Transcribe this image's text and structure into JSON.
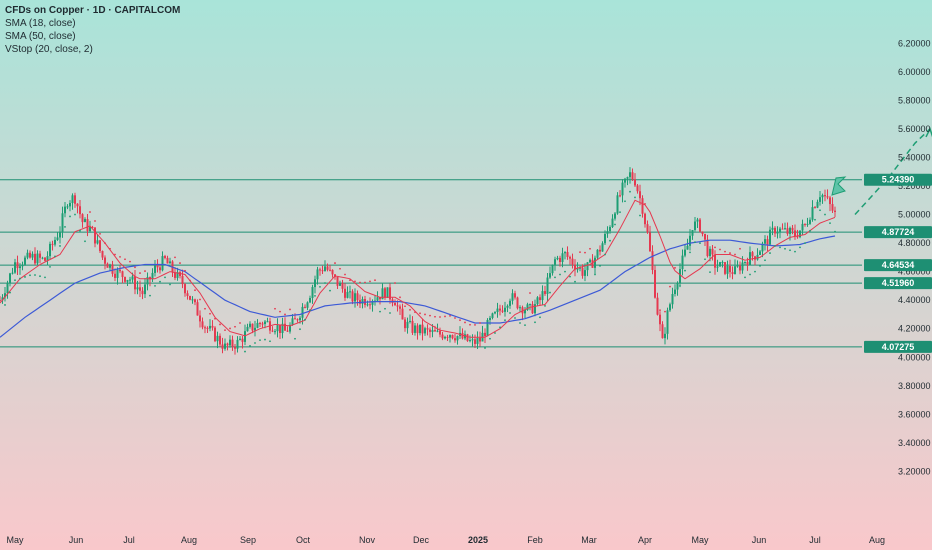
{
  "header": {
    "title": "CFDs on Copper · 1D · CAPITALCOM",
    "indicators": [
      "SMA (18, close)",
      "SMA (50, close)",
      "VStop (20, close, 2)"
    ]
  },
  "colors": {
    "bg_top": "#a9e4d9",
    "bg_bottom": "#f9c8cb",
    "up_candle": "#1e9e74",
    "down_candle": "#e53950",
    "sma18": "#e53950",
    "sma50": "#3d5ad6",
    "level_line": "#1e8f73",
    "level_label_bg": "#1e8f73",
    "forecast": "#1e9e74"
  },
  "chart_data": {
    "type": "candlestick",
    "ylim": [
      3.0,
      6.3
    ],
    "yticks": [
      "6.20000",
      "6.00000",
      "5.80000",
      "5.60000",
      "5.40000",
      "5.20000",
      "5.00000",
      "4.80000",
      "4.60000",
      "4.40000",
      "4.20000",
      "4.00000",
      "3.80000",
      "3.60000",
      "3.40000",
      "3.20000"
    ],
    "xticks": [
      "May",
      "Jun",
      "Jul",
      "Aug",
      "Sep",
      "Oct",
      "Nov",
      "Dec",
      "2025",
      "Feb",
      "Mar",
      "Apr",
      "May",
      "Jun",
      "Jul",
      "Aug"
    ],
    "levels": [
      {
        "value": "5.24390",
        "price": 5.2439
      },
      {
        "value": "4.87724",
        "price": 4.87724
      },
      {
        "value": "4.64534",
        "price": 4.64534
      },
      {
        "value": "4.51960",
        "price": 4.5196
      },
      {
        "value": "4.07275",
        "price": 4.07275
      }
    ],
    "price_path": [
      [
        0,
        4.4
      ],
      [
        6,
        4.66
      ],
      [
        13,
        4.7
      ],
      [
        18,
        4.68
      ],
      [
        24,
        4.9
      ],
      [
        27,
        5.1
      ],
      [
        30,
        5.12
      ],
      [
        33,
        4.95
      ],
      [
        37,
        4.88
      ],
      [
        41,
        4.7
      ],
      [
        46,
        4.6
      ],
      [
        52,
        4.55
      ],
      [
        57,
        4.45
      ],
      [
        62,
        4.62
      ],
      [
        66,
        4.68
      ],
      [
        70,
        4.58
      ],
      [
        73,
        4.52
      ],
      [
        78,
        4.35
      ],
      [
        82,
        4.22
      ],
      [
        86,
        4.15
      ],
      [
        90,
        4.07
      ],
      [
        95,
        4.1
      ],
      [
        100,
        4.2
      ],
      [
        105,
        4.25
      ],
      [
        110,
        4.22
      ],
      [
        114,
        4.18
      ],
      [
        118,
        4.25
      ],
      [
        121,
        4.35
      ],
      [
        124,
        4.45
      ],
      [
        127,
        4.6
      ],
      [
        130,
        4.64
      ],
      [
        133,
        4.56
      ],
      [
        136,
        4.5
      ],
      [
        140,
        4.42
      ],
      [
        145,
        4.4
      ],
      [
        150,
        4.42
      ],
      [
        154,
        4.46
      ],
      [
        158,
        4.4
      ],
      [
        161,
        4.25
      ],
      [
        165,
        4.2
      ],
      [
        170,
        4.18
      ],
      [
        175,
        4.16
      ],
      [
        180,
        4.17
      ],
      [
        184,
        4.14
      ],
      [
        189,
        4.1
      ],
      [
        192,
        4.12
      ],
      [
        196,
        4.25
      ],
      [
        200,
        4.33
      ],
      [
        204,
        4.43
      ],
      [
        208,
        4.36
      ],
      [
        212,
        4.33
      ],
      [
        216,
        4.4
      ],
      [
        219,
        4.52
      ],
      [
        222,
        4.68
      ],
      [
        226,
        4.72
      ],
      [
        230,
        4.65
      ],
      [
        233,
        4.6
      ],
      [
        236,
        4.64
      ],
      [
        240,
        4.76
      ],
      [
        243,
        4.88
      ],
      [
        246,
        5.05
      ],
      [
        249,
        5.18
      ],
      [
        252,
        5.28
      ],
      [
        254,
        5.24
      ],
      [
        257,
        5.05
      ],
      [
        259,
        4.86
      ],
      [
        261,
        4.6
      ],
      [
        263,
        4.32
      ],
      [
        265,
        4.1
      ],
      [
        267,
        4.3
      ],
      [
        269,
        4.45
      ],
      [
        272,
        4.62
      ],
      [
        275,
        4.78
      ],
      [
        277,
        4.93
      ],
      [
        280,
        4.92
      ],
      [
        283,
        4.75
      ],
      [
        286,
        4.65
      ],
      [
        290,
        4.62
      ],
      [
        294,
        4.6
      ],
      [
        298,
        4.68
      ],
      [
        302,
        4.72
      ],
      [
        306,
        4.8
      ],
      [
        310,
        4.9
      ],
      [
        314,
        4.88
      ],
      [
        318,
        4.86
      ],
      [
        322,
        4.92
      ],
      [
        325,
        5.05
      ],
      [
        328,
        5.15
      ],
      [
        330,
        5.12
      ],
      [
        332,
        5.06
      ],
      [
        334,
        5.0
      ]
    ],
    "sma18_path": [
      [
        0,
        4.38
      ],
      [
        8,
        4.55
      ],
      [
        16,
        4.65
      ],
      [
        24,
        4.72
      ],
      [
        30,
        4.88
      ],
      [
        36,
        4.92
      ],
      [
        42,
        4.8
      ],
      [
        48,
        4.66
      ],
      [
        55,
        4.55
      ],
      [
        62,
        4.55
      ],
      [
        68,
        4.6
      ],
      [
        74,
        4.58
      ],
      [
        80,
        4.45
      ],
      [
        86,
        4.28
      ],
      [
        92,
        4.18
      ],
      [
        98,
        4.15
      ],
      [
        104,
        4.2
      ],
      [
        110,
        4.23
      ],
      [
        116,
        4.22
      ],
      [
        122,
        4.26
      ],
      [
        128,
        4.45
      ],
      [
        134,
        4.57
      ],
      [
        140,
        4.55
      ],
      [
        146,
        4.46
      ],
      [
        152,
        4.42
      ],
      [
        158,
        4.42
      ],
      [
        164,
        4.36
      ],
      [
        170,
        4.25
      ],
      [
        176,
        4.19
      ],
      [
        182,
        4.17
      ],
      [
        188,
        4.14
      ],
      [
        194,
        4.14
      ],
      [
        200,
        4.2
      ],
      [
        206,
        4.3
      ],
      [
        212,
        4.35
      ],
      [
        218,
        4.37
      ],
      [
        224,
        4.5
      ],
      [
        230,
        4.62
      ],
      [
        236,
        4.65
      ],
      [
        242,
        4.72
      ],
      [
        248,
        4.9
      ],
      [
        254,
        5.1
      ],
      [
        259,
        5.06
      ],
      [
        264,
        4.85
      ],
      [
        269,
        4.62
      ],
      [
        274,
        4.55
      ],
      [
        280,
        4.62
      ],
      [
        286,
        4.72
      ],
      [
        292,
        4.72
      ],
      [
        298,
        4.68
      ],
      [
        304,
        4.7
      ],
      [
        310,
        4.78
      ],
      [
        316,
        4.84
      ],
      [
        322,
        4.86
      ],
      [
        328,
        4.94
      ],
      [
        334,
        4.98
      ]
    ],
    "sma50_path": [
      [
        0,
        4.14
      ],
      [
        10,
        4.28
      ],
      [
        20,
        4.4
      ],
      [
        30,
        4.52
      ],
      [
        40,
        4.59
      ],
      [
        50,
        4.63
      ],
      [
        58,
        4.65
      ],
      [
        66,
        4.65
      ],
      [
        74,
        4.6
      ],
      [
        82,
        4.5
      ],
      [
        90,
        4.4
      ],
      [
        100,
        4.32
      ],
      [
        110,
        4.28
      ],
      [
        120,
        4.3
      ],
      [
        130,
        4.36
      ],
      [
        140,
        4.38
      ],
      [
        150,
        4.39
      ],
      [
        160,
        4.39
      ],
      [
        170,
        4.36
      ],
      [
        180,
        4.3
      ],
      [
        190,
        4.24
      ],
      [
        200,
        4.24
      ],
      [
        210,
        4.27
      ],
      [
        220,
        4.33
      ],
      [
        230,
        4.4
      ],
      [
        240,
        4.47
      ],
      [
        250,
        4.6
      ],
      [
        260,
        4.7
      ],
      [
        268,
        4.76
      ],
      [
        276,
        4.8
      ],
      [
        284,
        4.82
      ],
      [
        292,
        4.82
      ],
      [
        300,
        4.8
      ],
      [
        310,
        4.78
      ],
      [
        320,
        4.79
      ],
      [
        328,
        4.83
      ],
      [
        334,
        4.85
      ]
    ],
    "forecast_path": [
      [
        342,
        5.0
      ],
      [
        355,
        5.25
      ],
      [
        366,
        5.5
      ],
      [
        372,
        5.6
      ]
    ]
  }
}
